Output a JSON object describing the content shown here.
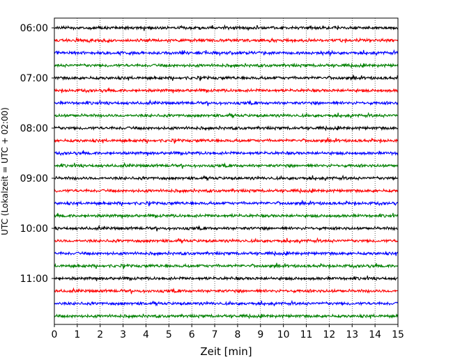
{
  "chart_data": {
    "type": "line",
    "title": "",
    "xlabel": "Zeit  [min]",
    "ylabel": "UTC (Lokalzeit = UTC + 02:00)",
    "xlim": [
      0,
      15
    ],
    "x_ticks": [
      "0",
      "1",
      "2",
      "3",
      "4",
      "5",
      "6",
      "7",
      "8",
      "9",
      "10",
      "11",
      "12",
      "13",
      "14",
      "15"
    ],
    "y_ticks": [
      "06:00",
      "07:00",
      "08:00",
      "09:00",
      "10:00",
      "11:00"
    ],
    "grid": "vertical dotted lines at each minute",
    "trace_interval_minutes": 15,
    "trace_start_times": [
      "06:00",
      "06:15",
      "06:30",
      "06:45",
      "07:00",
      "07:15",
      "07:30",
      "07:45",
      "08:00",
      "08:15",
      "08:30",
      "08:45",
      "09:00",
      "09:15",
      "09:30",
      "09:45",
      "10:00",
      "10:15",
      "10:30",
      "10:45",
      "11:00",
      "11:15",
      "11:30",
      "11:45"
    ],
    "trace_colors_cycle": [
      "#000000",
      "#ff0000",
      "#0000ff",
      "#008000"
    ],
    "legend": "none"
  }
}
